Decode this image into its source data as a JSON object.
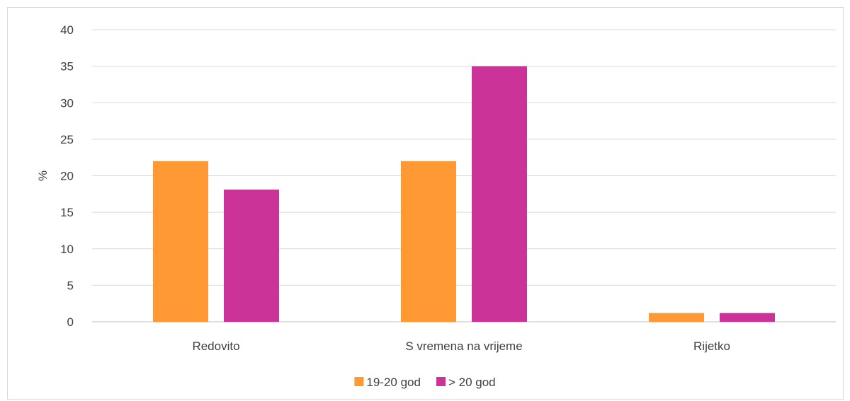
{
  "chart_data": {
    "type": "bar",
    "title": "",
    "xlabel": "",
    "ylabel": "%",
    "ylim": [
      0,
      40
    ],
    "yticks": [
      0,
      5,
      10,
      15,
      20,
      25,
      30,
      35,
      40
    ],
    "grid": true,
    "legend_position": "bottom",
    "categories": [
      "Redovito",
      "S vremena na vrijeme",
      "Rijetko"
    ],
    "series": [
      {
        "name": "19-20 god",
        "color": "#FF9933",
        "values": [
          22,
          22,
          1.2
        ]
      },
      {
        "name": "> 20 god",
        "color": "#CC3399",
        "values": [
          18.1,
          35,
          1.2
        ]
      }
    ]
  }
}
